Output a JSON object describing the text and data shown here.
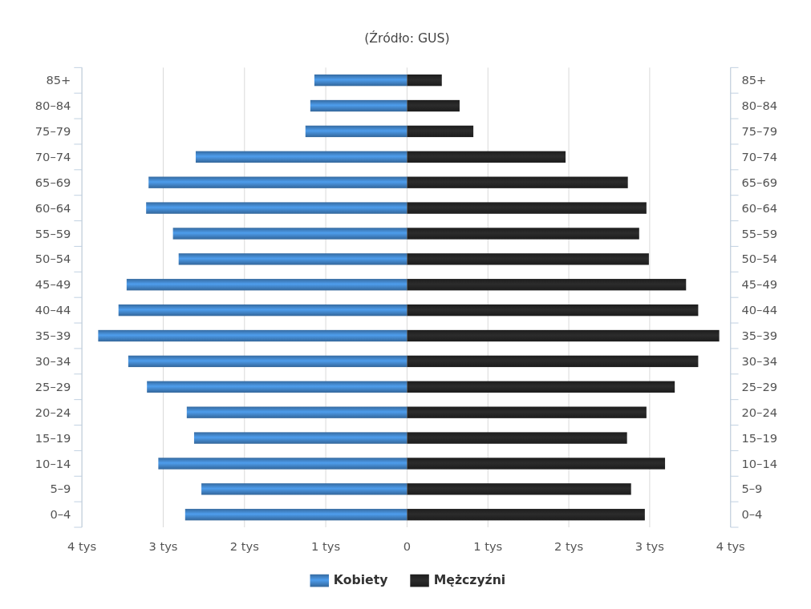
{
  "chart_data": [
    {
      "type": "bar",
      "orientation": "horizontal",
      "subtitle": "(Źródło: GUS)",
      "categories": [
        "85+",
        "80–84",
        "75–79",
        "70–74",
        "65–69",
        "60–64",
        "55–59",
        "50–54",
        "45–49",
        "40–44",
        "35–39",
        "30–34",
        "25–29",
        "20–24",
        "15–19",
        "10–14",
        "5–9",
        "0–4"
      ],
      "series": [
        {
          "name": "Kobiety",
          "color": "#3d7ab8",
          "values": [
            1.14,
            1.19,
            1.25,
            2.6,
            3.18,
            3.21,
            2.88,
            2.81,
            3.45,
            3.55,
            3.8,
            3.43,
            3.2,
            2.71,
            2.62,
            3.06,
            2.53,
            2.73
          ]
        }
      ],
      "xlim": [
        4,
        0
      ],
      "xticks": [
        {
          "value": 4,
          "label": "4 tys"
        },
        {
          "value": 3,
          "label": "3 tys"
        },
        {
          "value": 2,
          "label": "2 tys"
        },
        {
          "value": 1,
          "label": "1 tys"
        },
        0
      ],
      "grid": "x",
      "legend": "bottom"
    },
    {
      "type": "bar",
      "orientation": "horizontal",
      "categories": [
        "85+",
        "80–84",
        "75–79",
        "70–74",
        "65–69",
        "60–64",
        "55–59",
        "50–54",
        "45–49",
        "40–44",
        "35–39",
        "30–34",
        "25–29",
        "20–24",
        "15–19",
        "10–14",
        "5–9",
        "0–4"
      ],
      "series": [
        {
          "name": "Mężczyźni",
          "color": "#222222",
          "values": [
            0.43,
            0.65,
            0.82,
            1.96,
            2.73,
            2.96,
            2.87,
            2.99,
            3.45,
            3.6,
            3.86,
            3.6,
            3.31,
            2.96,
            2.72,
            3.19,
            2.77,
            2.94
          ]
        }
      ],
      "xlim": [
        0,
        4
      ],
      "xticks": [
        {
          "value": 1,
          "label": "1 tys"
        },
        {
          "value": 2,
          "label": "2 tys"
        },
        {
          "value": 3,
          "label": "3 tys"
        },
        {
          "value": 4,
          "label": "4 tys"
        }
      ],
      "grid": "x",
      "legend": "bottom"
    }
  ]
}
